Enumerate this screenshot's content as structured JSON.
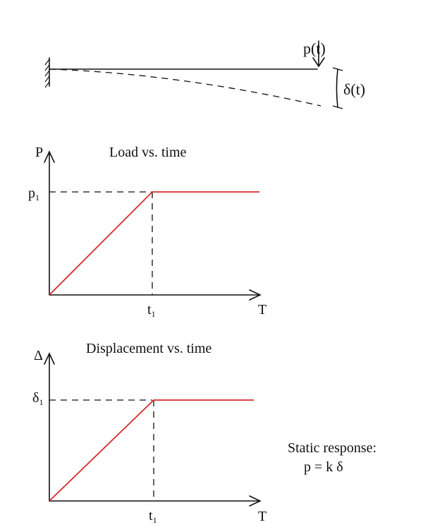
{
  "beam": {
    "load_label": "p(t)",
    "deflection_label": "δ(t)"
  },
  "load_chart": {
    "title": "Load vs. time",
    "ylabel": "P",
    "xlabel": "T",
    "y_tick": {
      "base": "p",
      "sub": "1"
    },
    "x_tick": {
      "base": "t",
      "sub": "1"
    }
  },
  "disp_chart": {
    "title": "Displacement vs. time",
    "ylabel": "Δ",
    "xlabel": "T",
    "y_tick": {
      "base": "δ",
      "sub": "1"
    },
    "x_tick": {
      "base": "t",
      "sub": "1"
    }
  },
  "note": {
    "line1": "Static response:",
    "line2": "p = k δ"
  },
  "colors": {
    "response": "#d42a2a",
    "ink": "#111111"
  },
  "chart_data": [
    {
      "type": "line",
      "title": "Load vs. time",
      "ylabel": "P",
      "xlabel": "T",
      "series": [
        {
          "points": [
            [
              "0",
              "0"
            ],
            [
              "t1",
              "p1"
            ],
            [
              "beyond",
              "p1"
            ]
          ]
        }
      ],
      "shape": "linear ramp to p1 at t1, then constant"
    },
    {
      "type": "line",
      "title": "Displacement vs. time",
      "ylabel": "Δ",
      "xlabel": "T",
      "series": [
        {
          "points": [
            [
              "0",
              "0"
            ],
            [
              "t1",
              "δ1"
            ],
            [
              "beyond",
              "δ1"
            ]
          ]
        }
      ],
      "shape": "linear ramp to δ1 at t1, then constant"
    }
  ]
}
